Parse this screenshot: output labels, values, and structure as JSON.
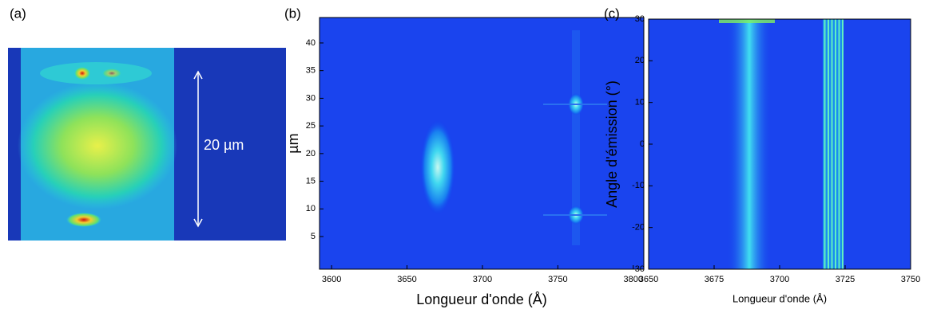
{
  "chart_data": [
    {
      "type": "image",
      "panel_label": "(a)",
      "annotation": "20 µm"
    },
    {
      "type": "heatmap",
      "panel_label": "(b)",
      "xlabel": "Longueur d'onde (Å)",
      "ylabel": "µm",
      "xlim": [
        3592,
        3807
      ],
      "xticks": [
        3600,
        3650,
        3700,
        3750,
        3800
      ],
      "ylim": [
        -0.9,
        44.6
      ],
      "yticks": [
        5,
        10,
        15,
        20,
        25,
        30,
        35,
        40
      ]
    },
    {
      "type": "heatmap",
      "panel_label": "(c)",
      "xlabel": "Longueur d'onde (Å)",
      "ylabel": "Angle d'émission (°)",
      "xlim": [
        3650,
        3750
      ],
      "xticks": [
        3650,
        3675,
        3700,
        3725,
        3750
      ],
      "ylim": [
        -30,
        30
      ],
      "yticks": [
        -30,
        -20,
        -10,
        0,
        10,
        20,
        30
      ]
    }
  ]
}
